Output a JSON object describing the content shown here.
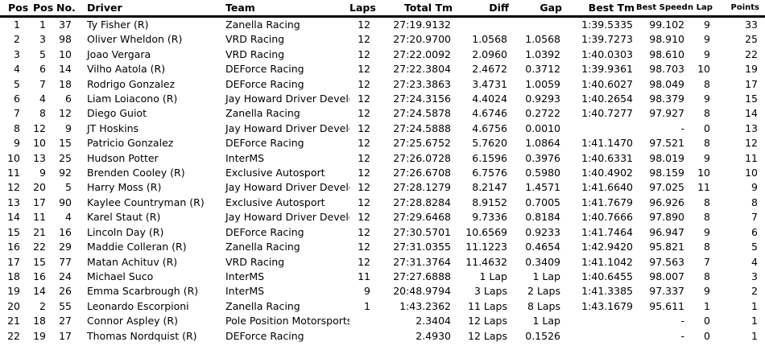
{
  "colors": {
    "text": "#000000",
    "background": "#ffffff",
    "header_rule": "#000000"
  },
  "table": {
    "columns": [
      {
        "label": "Pos"
      },
      {
        "label": "Pos"
      },
      {
        "label": "No."
      },
      {
        "label": "Driver"
      },
      {
        "label": "Team"
      },
      {
        "label": "Laps"
      },
      {
        "label": "Total Tm"
      },
      {
        "label": "Diff"
      },
      {
        "label": "Gap"
      },
      {
        "label": "Best Tm"
      },
      {
        "label": "Best Speed"
      },
      {
        "label": "n Lap"
      },
      {
        "label": "Points"
      }
    ],
    "rows": [
      [
        "1",
        "1",
        "37",
        "Ty Fisher (R)",
        "Zanella Racing",
        "12",
        "27:19.9132",
        "",
        "",
        "1:39.5335",
        "99.102",
        "9",
        "33"
      ],
      [
        "2",
        "3",
        "98",
        "Oliver Wheldon (R)",
        "VRD Racing",
        "12",
        "27:20.9700",
        "1.0568",
        "1.0568",
        "1:39.7273",
        "98.910",
        "9",
        "25"
      ],
      [
        "3",
        "5",
        "10",
        "Joao Vergara",
        "VRD Racing",
        "12",
        "27:22.0092",
        "2.0960",
        "1.0392",
        "1:40.0303",
        "98.610",
        "9",
        "22"
      ],
      [
        "4",
        "6",
        "14",
        "Vilho Aatola (R)",
        "DEForce Racing",
        "12",
        "27:22.3804",
        "2.4672",
        "0.3712",
        "1:39.9361",
        "98.703",
        "10",
        "19"
      ],
      [
        "5",
        "7",
        "18",
        "Rodrigo Gonzalez",
        "DEForce Racing",
        "12",
        "27:23.3863",
        "3.4731",
        "1.0059",
        "1:40.6027",
        "98.049",
        "8",
        "17"
      ],
      [
        "6",
        "4",
        "6",
        "Liam Loiacono (R)",
        "Jay Howard Driver Development",
        "12",
        "27:24.3156",
        "4.4024",
        "0.9293",
        "1:40.2654",
        "98.379",
        "9",
        "15"
      ],
      [
        "7",
        "8",
        "12",
        "Diego Guiot",
        "Zanella Racing",
        "12",
        "27:24.5878",
        "4.6746",
        "0.2722",
        "1:40.7277",
        "97.927",
        "8",
        "14"
      ],
      [
        "8",
        "12",
        "9",
        "JT Hoskins",
        "Jay Howard Driver Development",
        "12",
        "27:24.5888",
        "4.6756",
        "0.0010",
        "",
        "-",
        "0",
        "13"
      ],
      [
        "9",
        "10",
        "15",
        "Patricio Gonzalez",
        "DEForce Racing",
        "12",
        "27:25.6752",
        "5.7620",
        "1.0864",
        "1:41.1470",
        "97.521",
        "8",
        "12"
      ],
      [
        "10",
        "13",
        "25",
        "Hudson Potter",
        "InterMS",
        "12",
        "27:26.0728",
        "6.1596",
        "0.3976",
        "1:40.6331",
        "98.019",
        "9",
        "11"
      ],
      [
        "11",
        "9",
        "92",
        "Brenden Cooley (R)",
        "Exclusive Autosport",
        "12",
        "27:26.6708",
        "6.7576",
        "0.5980",
        "1:40.4902",
        "98.159",
        "10",
        "10"
      ],
      [
        "12",
        "20",
        "5",
        "Harry Moss (R)",
        "Jay Howard Driver Development",
        "12",
        "27:28.1279",
        "8.2147",
        "1.4571",
        "1:41.6640",
        "97.025",
        "11",
        "9"
      ],
      [
        "13",
        "17",
        "90",
        "Kaylee Countryman (R)",
        "Exclusive Autosport",
        "12",
        "27:28.8284",
        "8.9152",
        "0.7005",
        "1:41.7679",
        "96.926",
        "8",
        "8"
      ],
      [
        "14",
        "11",
        "4",
        "Karel Staut (R)",
        "Jay Howard Driver Development",
        "12",
        "27:29.6468",
        "9.7336",
        "0.8184",
        "1:40.7666",
        "97.890",
        "8",
        "7"
      ],
      [
        "15",
        "21",
        "16",
        "Lincoln Day (R)",
        "DEForce Racing",
        "12",
        "27:30.5701",
        "10.6569",
        "0.9233",
        "1:41.7464",
        "96.947",
        "9",
        "6"
      ],
      [
        "16",
        "22",
        "29",
        "Maddie Colleran (R)",
        "Zanella Racing",
        "12",
        "27:31.0355",
        "11.1223",
        "0.4654",
        "1:42.9420",
        "95.821",
        "8",
        "5"
      ],
      [
        "17",
        "15",
        "77",
        "Matan Achituv (R)",
        "VRD Racing",
        "12",
        "27:31.3764",
        "11.4632",
        "0.3409",
        "1:41.1042",
        "97.563",
        "7",
        "4"
      ],
      [
        "18",
        "16",
        "24",
        "Michael Suco",
        "InterMS",
        "11",
        "27:27.6888",
        "1 Lap",
        "1 Lap",
        "1:40.6455",
        "98.007",
        "8",
        "3"
      ],
      [
        "19",
        "14",
        "26",
        "Emma Scarbrough (R)",
        "InterMS",
        "9",
        "20:48.9794",
        "3 Laps",
        "2 Laps",
        "1:41.3385",
        "97.337",
        "9",
        "2"
      ],
      [
        "20",
        "2",
        "55",
        "Leonardo Escorpioni",
        "Zanella Racing",
        "1",
        "1:43.2362",
        "11 Laps",
        "8 Laps",
        "1:43.1679",
        "95.611",
        "1",
        "1"
      ],
      [
        "21",
        "18",
        "27",
        "Connor Aspley (R)",
        "Pole Position Motorsports",
        "",
        "2.3404",
        "12 Laps",
        "1 Lap",
        "",
        "-",
        "0",
        "1"
      ],
      [
        "22",
        "19",
        "17",
        "Thomas Nordquist (R)",
        "DEForce Racing",
        "",
        "2.4930",
        "12 Laps",
        "0.1526",
        "",
        "-",
        "0",
        "1"
      ]
    ]
  }
}
